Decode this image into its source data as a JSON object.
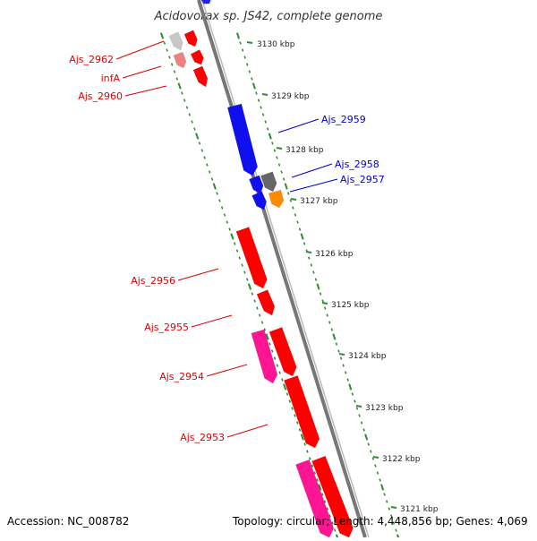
{
  "title": "Acidovorax sp. JS42, complete genome",
  "footer": {
    "accession": "Accession: NC_008782",
    "summary": "Topology: circular; Length: 4,448,856 bp; Genes: 4,069"
  },
  "colors": {
    "backbone": "#888888",
    "ticks": "#2e8b2e",
    "forward_label": "#0000cc",
    "reverse_label": "#dd0000"
  },
  "kbp_labels": [
    "3130 kbp",
    "3129 kbp",
    "3128 kbp",
    "3127 kbp",
    "3126 kbp",
    "3125 kbp",
    "3124 kbp",
    "3123 kbp",
    "3122 kbp",
    "3121 kbp"
  ],
  "gene_labels": [
    {
      "text": "Ajs_2962",
      "strand": "reverse"
    },
    {
      "text": "infA",
      "strand": "reverse"
    },
    {
      "text": "Ajs_2960",
      "strand": "reverse"
    },
    {
      "text": "Ajs_2959",
      "strand": "forward"
    },
    {
      "text": "Ajs_2958",
      "strand": "forward"
    },
    {
      "text": "Ajs_2957",
      "strand": "forward"
    },
    {
      "text": "Ajs_2956",
      "strand": "reverse"
    },
    {
      "text": "Ajs_2955",
      "strand": "reverse"
    },
    {
      "text": "Ajs_2954",
      "strand": "reverse"
    },
    {
      "text": "Ajs_2953",
      "strand": "reverse"
    }
  ]
}
